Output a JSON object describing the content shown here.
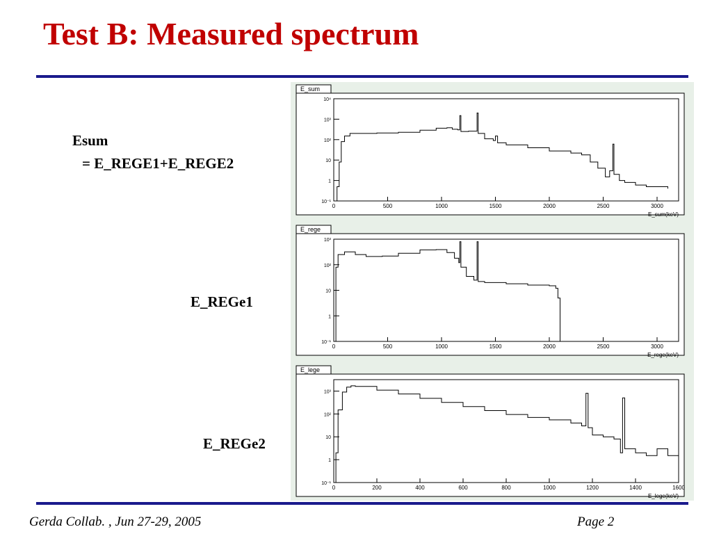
{
  "slide": {
    "title": "Test B: Measured spectrum",
    "labels": {
      "esum_line1": "Esum",
      "esum_line2": "= E_REGE1+E_REGE2",
      "rege1": "E_REGe1",
      "rege2": "E_REGe2"
    },
    "footer": {
      "left": "Gerda Collab. , Jun 27-29, 2005",
      "right": "Page 2"
    },
    "colors": {
      "title": "#c00000",
      "rule": "#1a1a8c",
      "panel_bg": "#e8f0e8"
    }
  },
  "chart_data": [
    {
      "type": "line",
      "title": "E_sum",
      "xlabel": "E_sum(keV)",
      "xlim": [
        0,
        3200
      ],
      "ylim_log10": [
        -1,
        4
      ],
      "yscale": "log",
      "x_ticks": [
        "0",
        "500",
        "1000",
        "1500",
        "2000",
        "2500",
        "3000"
      ],
      "y_ticks": [
        "10⁻¹",
        "1",
        "10",
        "10²",
        "10³",
        "10⁴"
      ],
      "points": [
        [
          0,
          0.1
        ],
        [
          30,
          0.5
        ],
        [
          50,
          8
        ],
        [
          70,
          80
        ],
        [
          100,
          150
        ],
        [
          150,
          200
        ],
        [
          250,
          200
        ],
        [
          400,
          210
        ],
        [
          600,
          230
        ],
        [
          800,
          290
        ],
        [
          950,
          360
        ],
        [
          1050,
          380
        ],
        [
          1100,
          320
        ],
        [
          1150,
          300
        ],
        [
          1170,
          1500
        ],
        [
          1180,
          250
        ],
        [
          1250,
          260
        ],
        [
          1330,
          2000
        ],
        [
          1340,
          200
        ],
        [
          1400,
          110
        ],
        [
          1480,
          90
        ],
        [
          1500,
          150
        ],
        [
          1520,
          70
        ],
        [
          1600,
          55
        ],
        [
          1800,
          40
        ],
        [
          2000,
          28
        ],
        [
          2200,
          22
        ],
        [
          2300,
          18
        ],
        [
          2380,
          8
        ],
        [
          2450,
          4
        ],
        [
          2520,
          1.5
        ],
        [
          2560,
          3
        ],
        [
          2590,
          60
        ],
        [
          2600,
          2
        ],
        [
          2650,
          1
        ],
        [
          2700,
          0.8
        ],
        [
          2800,
          0.6
        ],
        [
          2900,
          0.5
        ],
        [
          3000,
          0.5
        ],
        [
          3100,
          0.4
        ]
      ]
    },
    {
      "type": "line",
      "title": "E_rege",
      "xlabel": "E_rege(keV)",
      "xlim": [
        0,
        3200
      ],
      "ylim_log10": [
        -1,
        3
      ],
      "yscale": "log",
      "x_ticks": [
        "0",
        "500",
        "1000",
        "1500",
        "2000",
        "2500",
        "3000"
      ],
      "y_ticks": [
        "10⁻¹",
        "1",
        "10",
        "10²",
        "10³"
      ],
      "points": [
        [
          0,
          0.1
        ],
        [
          20,
          80
        ],
        [
          40,
          250
        ],
        [
          100,
          320
        ],
        [
          200,
          250
        ],
        [
          300,
          210
        ],
        [
          450,
          220
        ],
        [
          600,
          280
        ],
        [
          800,
          380
        ],
        [
          950,
          390
        ],
        [
          1050,
          300
        ],
        [
          1120,
          180
        ],
        [
          1160,
          120
        ],
        [
          1170,
          800
        ],
        [
          1180,
          80
        ],
        [
          1230,
          35
        ],
        [
          1300,
          25
        ],
        [
          1330,
          800
        ],
        [
          1340,
          22
        ],
        [
          1400,
          20
        ],
        [
          1600,
          18
        ],
        [
          1800,
          16
        ],
        [
          2000,
          15
        ],
        [
          2060,
          12
        ],
        [
          2080,
          5
        ],
        [
          2100,
          0.1
        ],
        [
          2200,
          0.1
        ]
      ]
    },
    {
      "type": "line",
      "title": "E_lege",
      "xlabel": "E_lege(keV)",
      "xlim": [
        0,
        1600
      ],
      "ylim_log10": [
        -1,
        3.5
      ],
      "yscale": "log",
      "x_ticks": [
        "0",
        "200",
        "400",
        "600",
        "800",
        "1000",
        "1200",
        "1400",
        "1600"
      ],
      "y_ticks": [
        "10⁻¹",
        "1",
        "10",
        "10²",
        "10³"
      ],
      "points": [
        [
          0,
          0.1
        ],
        [
          10,
          2
        ],
        [
          20,
          150
        ],
        [
          40,
          900
        ],
        [
          60,
          1500
        ],
        [
          80,
          1700
        ],
        [
          100,
          1600
        ],
        [
          200,
          1100
        ],
        [
          300,
          750
        ],
        [
          400,
          480
        ],
        [
          500,
          320
        ],
        [
          600,
          210
        ],
        [
          700,
          140
        ],
        [
          800,
          95
        ],
        [
          900,
          70
        ],
        [
          1000,
          55
        ],
        [
          1100,
          40
        ],
        [
          1150,
          30
        ],
        [
          1170,
          800
        ],
        [
          1180,
          25
        ],
        [
          1200,
          12
        ],
        [
          1250,
          10
        ],
        [
          1300,
          8
        ],
        [
          1330,
          2
        ],
        [
          1340,
          500
        ],
        [
          1350,
          3
        ],
        [
          1400,
          2
        ],
        [
          1450,
          1.5
        ],
        [
          1500,
          3
        ],
        [
          1550,
          1.5
        ],
        [
          1600,
          2
        ]
      ]
    }
  ]
}
